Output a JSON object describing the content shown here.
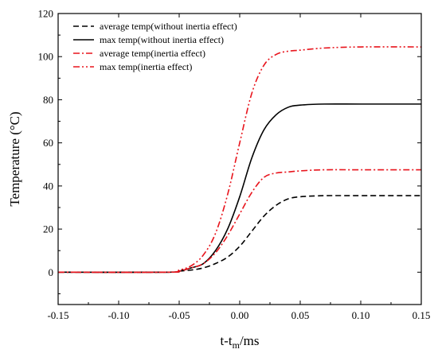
{
  "chart_data": {
    "type": "line",
    "xlabel_main": "t-t",
    "xlabel_sub": "m",
    "xlabel_unit": "/ms",
    "ylabel": "Temperature (°C)",
    "xlim": [
      -0.15,
      0.15
    ],
    "ylim": [
      -15,
      120
    ],
    "xticks": [
      "-0.15",
      "-0.10",
      "-0.05",
      "0.00",
      "0.05",
      "0.10",
      "0.15"
    ],
    "yticks": [
      "0",
      "20",
      "40",
      "60",
      "80",
      "100",
      "120"
    ],
    "legend_position": "top-left",
    "series": [
      {
        "name": "average temp(without inertia effect)",
        "color": "#000000",
        "style": "dashed",
        "x": [
          -0.15,
          -0.06,
          -0.05,
          -0.04,
          -0.03,
          -0.02,
          -0.01,
          0.0,
          0.01,
          0.02,
          0.03,
          0.04,
          0.05,
          0.07,
          0.1,
          0.15
        ],
        "y": [
          0,
          0,
          0.5,
          1,
          2,
          4,
          7,
          12,
          19,
          26,
          31,
          34,
          35,
          35.5,
          35.5,
          35.5
        ]
      },
      {
        "name": "max temp(without inertia effect)",
        "color": "#000000",
        "style": "solid",
        "x": [
          -0.15,
          -0.06,
          -0.05,
          -0.04,
          -0.03,
          -0.02,
          -0.01,
          0.0,
          0.01,
          0.02,
          0.03,
          0.04,
          0.05,
          0.07,
          0.1,
          0.15
        ],
        "y": [
          0,
          0,
          0.5,
          2,
          4,
          10,
          20,
          35,
          53,
          66,
          73,
          76.5,
          77.5,
          78,
          78,
          78
        ]
      },
      {
        "name": "average temp(inertia effect)",
        "color": "#e8141c",
        "style": "dashdot",
        "x": [
          -0.15,
          -0.06,
          -0.05,
          -0.04,
          -0.03,
          -0.02,
          -0.01,
          0.0,
          0.01,
          0.02,
          0.03,
          0.04,
          0.05,
          0.07,
          0.1,
          0.15
        ],
        "y": [
          0,
          0,
          0.5,
          2,
          4,
          9,
          17,
          27,
          37,
          44,
          46,
          46.5,
          47,
          47.5,
          47.5,
          47.5
        ]
      },
      {
        "name": "max temp(inertia effect)",
        "color": "#e8141c",
        "style": "dashdotdot",
        "x": [
          -0.15,
          -0.06,
          -0.05,
          -0.04,
          -0.03,
          -0.02,
          -0.01,
          0.0,
          0.01,
          0.02,
          0.03,
          0.04,
          0.05,
          0.07,
          0.1,
          0.15
        ],
        "y": [
          0,
          0,
          1,
          3,
          8,
          18,
          36,
          60,
          83,
          96,
          101,
          102.5,
          103,
          104,
          104.5,
          104.5
        ]
      }
    ]
  }
}
